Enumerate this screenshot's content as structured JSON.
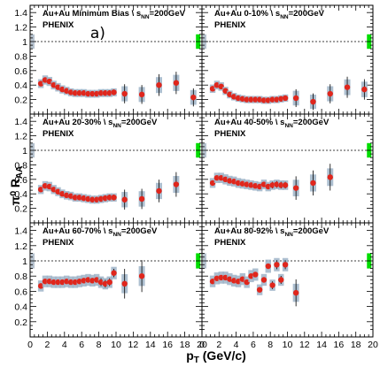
{
  "chart_data": {
    "type": "scatter",
    "xlabel": "p_T (GeV/c)",
    "ylabel": "π^0 R_AA",
    "xlim": [
      0,
      20
    ],
    "ylim": [
      0,
      1.5
    ],
    "x_ticks": [
      "0",
      "2",
      "4",
      "6",
      "8",
      "10",
      "12",
      "14",
      "16",
      "18",
      "20"
    ],
    "y_ticks": [
      "0.2",
      "0.4",
      "0.6",
      "0.8",
      "1",
      "1.2",
      "1.4"
    ],
    "reference_line": 1.0,
    "annotation": "a)",
    "colors": {
      "points": "#e0261c",
      "syst_band": "#9fb4c8",
      "norm_box": "#00dd00",
      "ref_box": "#b6c2ce"
    },
    "panels": [
      {
        "title": "Au+Au Minimum Bias",
        "energy": "=200GeV",
        "experiment": "PHENIX",
        "x": [
          1.25,
          1.75,
          2.25,
          2.75,
          3.25,
          3.75,
          4.25,
          4.75,
          5.25,
          5.75,
          6.25,
          6.75,
          7.25,
          7.75,
          8.25,
          8.75,
          9.25,
          9.75,
          11,
          13,
          15,
          17,
          19
        ],
        "y": [
          0.42,
          0.47,
          0.45,
          0.4,
          0.37,
          0.34,
          0.32,
          0.3,
          0.29,
          0.29,
          0.29,
          0.28,
          0.28,
          0.28,
          0.29,
          0.29,
          0.29,
          0.3,
          0.28,
          0.27,
          0.4,
          0.43,
          0.23
        ]
      },
      {
        "title": "Au+Au 0-10%",
        "energy": "=200GeV",
        "experiment": "PHENIX",
        "x": [
          1.25,
          1.75,
          2.25,
          2.75,
          3.25,
          3.75,
          4.25,
          4.75,
          5.25,
          5.75,
          6.25,
          6.75,
          7.25,
          7.75,
          8.25,
          8.75,
          9.25,
          9.75,
          11,
          13,
          15,
          17,
          19
        ],
        "y": [
          0.35,
          0.4,
          0.38,
          0.32,
          0.27,
          0.24,
          0.22,
          0.21,
          0.2,
          0.2,
          0.2,
          0.2,
          0.19,
          0.19,
          0.2,
          0.2,
          0.21,
          0.22,
          0.22,
          0.17,
          0.28,
          0.37,
          0.34
        ]
      },
      {
        "title": "Au+Au 20-30%",
        "energy": "=200GeV",
        "experiment": "PHENIX",
        "x": [
          1.25,
          1.75,
          2.25,
          2.75,
          3.25,
          3.75,
          4.25,
          4.75,
          5.25,
          5.75,
          6.25,
          6.75,
          7.25,
          7.75,
          8.25,
          8.75,
          9.25,
          9.75,
          11,
          13,
          15,
          17
        ],
        "y": [
          0.46,
          0.51,
          0.5,
          0.46,
          0.43,
          0.4,
          0.38,
          0.37,
          0.35,
          0.35,
          0.34,
          0.33,
          0.32,
          0.32,
          0.33,
          0.34,
          0.35,
          0.35,
          0.32,
          0.33,
          0.44,
          0.53
        ]
      },
      {
        "title": "Au+Au 40-50%",
        "energy": "=200GeV",
        "experiment": "PHENIX",
        "x": [
          1.25,
          1.75,
          2.25,
          2.75,
          3.25,
          3.75,
          4.25,
          4.75,
          5.25,
          5.75,
          6.25,
          6.75,
          7.25,
          7.75,
          8.25,
          8.75,
          9.25,
          9.75,
          11,
          13,
          15
        ],
        "y": [
          0.55,
          0.62,
          0.62,
          0.6,
          0.58,
          0.57,
          0.55,
          0.54,
          0.53,
          0.52,
          0.51,
          0.5,
          0.53,
          0.5,
          0.52,
          0.53,
          0.52,
          0.52,
          0.48,
          0.55,
          0.63
        ]
      },
      {
        "title": "Au+Au 60-70%",
        "energy": "=200GeV",
        "experiment": "PHENIX",
        "x": [
          1.25,
          1.75,
          2.25,
          2.75,
          3.25,
          3.75,
          4.25,
          4.75,
          5.25,
          5.75,
          6.25,
          6.75,
          7.25,
          7.75,
          8.25,
          8.75,
          9.25,
          9.75,
          11,
          13
        ],
        "y": [
          0.67,
          0.73,
          0.73,
          0.72,
          0.72,
          0.72,
          0.73,
          0.72,
          0.72,
          0.73,
          0.74,
          0.75,
          0.74,
          0.75,
          0.72,
          0.7,
          0.72,
          0.84,
          0.7,
          0.8
        ]
      },
      {
        "title": "Au+Au 80-92%",
        "energy": "=200GeV",
        "experiment": "PHENIX",
        "x": [
          1.25,
          1.75,
          2.25,
          2.75,
          3.25,
          3.75,
          4.25,
          4.75,
          5.25,
          5.75,
          6.25,
          6.75,
          7.25,
          7.75,
          8.25,
          8.75,
          9.25,
          9.75,
          11
        ],
        "y": [
          0.73,
          0.77,
          0.78,
          0.78,
          0.76,
          0.74,
          0.73,
          0.76,
          0.72,
          0.8,
          0.82,
          0.62,
          0.75,
          0.93,
          0.68,
          0.95,
          0.75,
          0.95,
          0.58
        ]
      }
    ]
  }
}
